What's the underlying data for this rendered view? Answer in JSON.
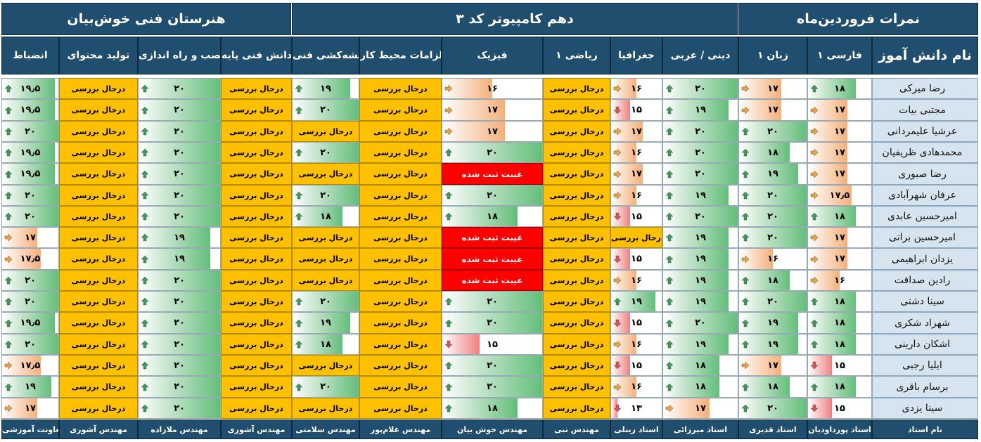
{
  "header": {
    "school": "هنرستان فنی خوش‌بیان",
    "class": "دهم کامپیوتر کد ۳",
    "title": "نمرات فروردین‌ماه"
  },
  "columns": [
    {
      "key": "name",
      "label": "نام دانش آموز",
      "teacher": "نام استاد"
    },
    {
      "key": "farsi",
      "label": "فارسی ۱",
      "teacher": "استاد پورداودیان"
    },
    {
      "key": "zaban",
      "label": "زبان ۱",
      "teacher": "استاد قدیری"
    },
    {
      "key": "dini",
      "label": "دینی / عربی",
      "teacher": "استاد میرزائی"
    },
    {
      "key": "joghrafia",
      "label": "جغرافیا",
      "teacher": "استاد زینلی"
    },
    {
      "key": "riazi",
      "label": "ریاضی ۱",
      "teacher": "مهندس نبی"
    },
    {
      "key": "fizik",
      "label": "فیزیک",
      "teacher": "مهندس خوش بیان"
    },
    {
      "key": "elzamat",
      "label": "الزامات محیط کار",
      "teacher": "مهندس غلام‌پور"
    },
    {
      "key": "naghshe",
      "label": "نقشه‌کشی فنی",
      "teacher": "مهندس سلامتی"
    },
    {
      "key": "danesh",
      "label": "دانش فنی پایه",
      "teacher": "مهندس آشوری"
    },
    {
      "key": "nasb",
      "label": "نصب و راه اندازی",
      "teacher": "مهندس ملازاده"
    },
    {
      "key": "tolid",
      "label": "تولید محتوای",
      "teacher": "مهندس آشوری"
    },
    {
      "key": "enzebat",
      "label": "انضباط",
      "teacher": "معاونت آموزشی"
    }
  ],
  "status_text": {
    "review": "درحال بررسی",
    "absent": "غیبت ثبت شده"
  },
  "colors": {
    "header": "#1f4e6e",
    "name": "#d6e4ef",
    "review": "#ffc000",
    "absent": "#ff0000",
    "high": "#63be7b",
    "mid": "#f4b07a",
    "low": "#f08080"
  },
  "icons": {
    "up": "arrow-up-icon",
    "right": "arrow-right-icon",
    "down": "arrow-down-icon"
  },
  "students": [
    {
      "name": "رضا میرکی",
      "farsi": "۱۸",
      "zaban": "۱۷",
      "dini": "۲۰",
      "joghrafia": "۱۶",
      "riazi": "درحال بررسی",
      "fizik": "۱۶",
      "elzamat": "درحال بررسی",
      "naghshe": "۱۹",
      "danesh": "درحال بررسی",
      "nasb": "۲۰",
      "tolid": "درحال بررسی",
      "enzebat": "۱۹٫۵"
    },
    {
      "name": "مجتبی بیات",
      "farsi": "۱۷",
      "zaban": "۱۷",
      "dini": "۱۹",
      "joghrafia": "۱۵",
      "riazi": "درحال بررسی",
      "fizik": "۱۷",
      "elzamat": "درحال بررسی",
      "naghshe": "۲۰",
      "danesh": "درحال بررسی",
      "nasb": "۲۰",
      "tolid": "درحال بررسی",
      "enzebat": "۱۹٫۵"
    },
    {
      "name": "عرشیا علیمردانی",
      "farsi": "۱۷",
      "zaban": "۲۰",
      "dini": "۲۰",
      "joghrafia": "۱۷",
      "riazi": "درحال بررسی",
      "fizik": "۱۷",
      "elzamat": "درحال بررسی",
      "naghshe": "درحال بررسی",
      "danesh": "درحال بررسی",
      "nasb": "۲۰",
      "tolid": "درحال بررسی",
      "enzebat": "۲۰"
    },
    {
      "name": "محمدهادی ظریفیان",
      "farsi": "۱۷",
      "zaban": "۱۸",
      "dini": "۲۰",
      "joghrafia": "۱۶",
      "riazi": "درحال بررسی",
      "fizik": "۲۰",
      "elzamat": "درحال بررسی",
      "naghshe": "۲۰",
      "danesh": "درحال بررسی",
      "nasb": "۲۰",
      "tolid": "درحال بررسی",
      "enzebat": "۱۹٫۵"
    },
    {
      "name": "رضا صبوری",
      "farsi": "۱۷",
      "zaban": "۱۹",
      "dini": "۲۰",
      "joghrafia": "۱۷",
      "riazi": "درحال بررسی",
      "fizik": "غیبت ثبت شده",
      "elzamat": "درحال بررسی",
      "naghshe": "درحال بررسی",
      "danesh": "درحال بررسی",
      "nasb": "۲۰",
      "tolid": "درحال بررسی",
      "enzebat": "۱۹٫۵"
    },
    {
      "name": "عرفان شهرآبادی",
      "farsi": "۱۷٫۵",
      "zaban": "۲۰",
      "dini": "۱۹",
      "joghrafia": "۱۶",
      "riazi": "درحال بررسی",
      "fizik": "۲۰",
      "elzamat": "درحال بررسی",
      "naghshe": "۲۰",
      "danesh": "درحال بررسی",
      "nasb": "۲۰",
      "tolid": "درحال بررسی",
      "enzebat": "۲۰"
    },
    {
      "name": "امیرحسین عابدی",
      "farsi": "۱۸",
      "zaban": "۲۰",
      "dini": "۲۰",
      "joghrafia": "۱۵",
      "riazi": "درحال بررسی",
      "fizik": "۱۸",
      "elzamat": "درحال بررسی",
      "naghshe": "۱۸",
      "danesh": "درحال بررسی",
      "nasb": "۲۰",
      "tolid": "درحال بررسی",
      "enzebat": "۲۰"
    },
    {
      "name": "امیرحسین براتی",
      "farsi": "۱۷",
      "zaban": "۲۰",
      "dini": "۱۹",
      "joghrafia": "درحال بررسی",
      "riazi": "درحال بررسی",
      "fizik": "غیبت ثبت شده",
      "elzamat": "درحال بررسی",
      "naghshe": "درحال بررسی",
      "danesh": "درحال بررسی",
      "nasb": "۱۹",
      "tolid": "درحال بررسی",
      "enzebat": "۱۷"
    },
    {
      "name": "یزدان ابراهیمی",
      "farsi": "۱۷",
      "zaban": "۱۶",
      "dini": "۱۹",
      "joghrafia": "۱۵",
      "riazi": "درحال بررسی",
      "fizik": "غیبت ثبت شده",
      "elzamat": "درحال بررسی",
      "naghshe": "درحال بررسی",
      "danesh": "درحال بررسی",
      "nasb": "۱۹",
      "tolid": "درحال بررسی",
      "enzebat": "۱۷٫۵"
    },
    {
      "name": "رادین صداقت",
      "farsi": "۱۶",
      "zaban": "۱۸",
      "dini": "۱۹",
      "joghrafia": "۱۶",
      "riazi": "درحال بررسی",
      "fizik": "غیبت ثبت شده",
      "elzamat": "درحال بررسی",
      "naghshe": "درحال بررسی",
      "danesh": "درحال بررسی",
      "nasb": "۲۰",
      "tolid": "درحال بررسی",
      "enzebat": "۲۰"
    },
    {
      "name": "سینا دشتی",
      "farsi": "۱۸",
      "zaban": "۲۰",
      "dini": "۱۹",
      "joghrafia": "۱۹",
      "riazi": "درحال بررسی",
      "fizik": "۲۰",
      "elzamat": "درحال بررسی",
      "naghshe": "۲۰",
      "danesh": "درحال بررسی",
      "nasb": "۲۰",
      "tolid": "درحال بررسی",
      "enzebat": "۲۰"
    },
    {
      "name": "شهراد شکری",
      "farsi": "۱۸",
      "zaban": "۱۹",
      "dini": "۲۰",
      "joghrafia": "۱۵",
      "riazi": "درحال بررسی",
      "fizik": "۲۰",
      "elzamat": "درحال بررسی",
      "naghshe": "۱۹",
      "danesh": "درحال بررسی",
      "nasb": "۲۰",
      "tolid": "درحال بررسی",
      "enzebat": "۱۹٫۵"
    },
    {
      "name": "اشکان دارینی",
      "farsi": "۱۸",
      "zaban": "۱۹",
      "dini": "۱۹",
      "joghrafia": "۱۶",
      "riazi": "درحال بررسی",
      "fizik": "۱۵",
      "elzamat": "درحال بررسی",
      "naghshe": "۱۸",
      "danesh": "درحال بررسی",
      "nasb": "۲۰",
      "tolid": "درحال بررسی",
      "enzebat": "۲۰"
    },
    {
      "name": "ایلیا رجبی",
      "farsi": "۱۵",
      "zaban": "۱۷",
      "dini": "۱۸",
      "joghrafia": "۱۵",
      "riazi": "درحال بررسی",
      "fizik": "۲۰",
      "elzamat": "درحال بررسی",
      "naghshe": "درحال بررسی",
      "danesh": "درحال بررسی",
      "nasb": "۲۰",
      "tolid": "درحال بررسی",
      "enzebat": "۱۷٫۵"
    },
    {
      "name": "برسام باقری",
      "farsi": "۱۸",
      "zaban": "۱۸",
      "dini": "۱۸",
      "joghrafia": "۱۶",
      "riazi": "درحال بررسی",
      "fizik": "۲۰",
      "elzamat": "درحال بررسی",
      "naghshe": "۲۰",
      "danesh": "درحال بررسی",
      "nasb": "۲۰",
      "tolid": "درحال بررسی",
      "enzebat": "۱۹"
    },
    {
      "name": "سینا یزدی",
      "farsi": "۱۵",
      "zaban": "۲۰",
      "dini": "۱۷",
      "joghrafia": "۱۳",
      "riazi": "درحال بررسی",
      "fizik": "۱۸",
      "elzamat": "درحال بررسی",
      "naghshe": "درحال بررسی",
      "danesh": "درحال بررسی",
      "nasb": "۲۰",
      "tolid": "درحال بررسی",
      "enzebat": "۱۷"
    }
  ]
}
